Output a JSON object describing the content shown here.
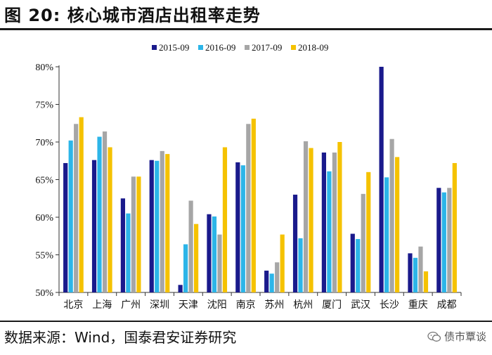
{
  "header": {
    "title": "图 20:  核心城市酒店出租率走势"
  },
  "footer": {
    "source": "数据来源：Wind，国泰君安证券研究",
    "watermark": "债市覃谈"
  },
  "chart_data": {
    "type": "bar",
    "title": "",
    "xlabel": "",
    "ylabel": "",
    "ylim": [
      50,
      80
    ],
    "yticks": [
      50,
      55,
      60,
      65,
      70,
      75,
      80
    ],
    "ytick_labels": [
      "50%",
      "55%",
      "60%",
      "65%",
      "70%",
      "75%",
      "80%"
    ],
    "grid": false,
    "legend_position": "top",
    "categories": [
      "北京",
      "上海",
      "广州",
      "深圳",
      "天津",
      "沈阳",
      "南京",
      "苏州",
      "杭州",
      "厦门",
      "武汉",
      "长沙",
      "重庆",
      "成都"
    ],
    "series": [
      {
        "name": "2015-09",
        "color": "#1a1a8c",
        "values": [
          67.2,
          67.6,
          62.5,
          67.6,
          51.0,
          60.4,
          67.3,
          52.9,
          63.0,
          68.6,
          57.8,
          80.0,
          55.2,
          63.9
        ]
      },
      {
        "name": "2016-09",
        "color": "#2cb5e8",
        "values": [
          70.2,
          70.7,
          60.5,
          67.5,
          56.4,
          60.1,
          66.9,
          52.5,
          57.2,
          66.1,
          57.1,
          65.3,
          54.6,
          63.3
        ]
      },
      {
        "name": "2017-09",
        "color": "#a6a6a6",
        "values": [
          72.4,
          71.4,
          65.4,
          68.8,
          62.2,
          57.7,
          72.4,
          54.0,
          70.1,
          68.6,
          63.1,
          70.4,
          56.1,
          63.9
        ]
      },
      {
        "name": "2018-09",
        "color": "#f5c200",
        "values": [
          73.3,
          69.3,
          65.4,
          68.4,
          59.1,
          69.3,
          73.1,
          57.7,
          69.2,
          70.0,
          66.0,
          68.0,
          52.8,
          67.2
        ]
      }
    ]
  }
}
